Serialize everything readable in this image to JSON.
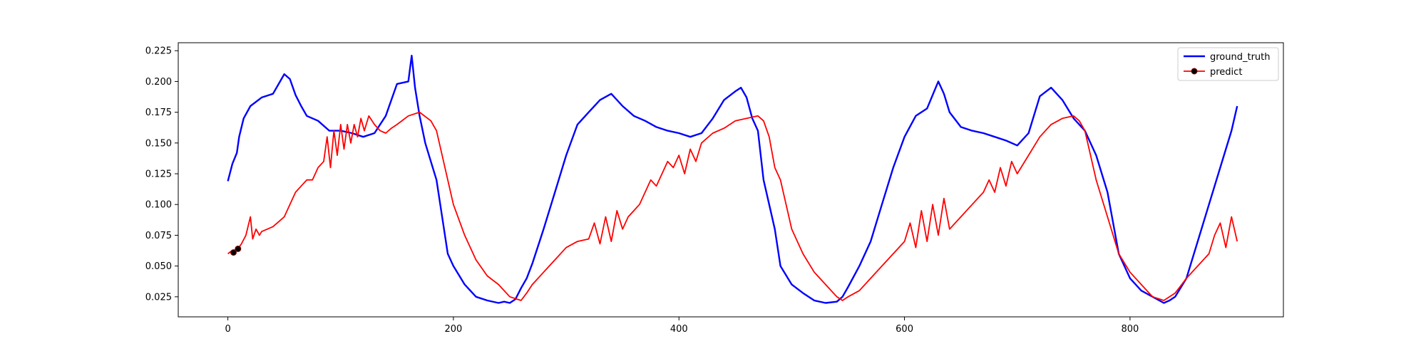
{
  "chart_data": {
    "type": "line",
    "title": "",
    "xlabel": "",
    "ylabel": "",
    "xlim": [
      -44,
      936
    ],
    "ylim": [
      0.0087,
      0.2315
    ],
    "x_ticks": [
      0,
      200,
      400,
      600,
      800
    ],
    "y_ticks": [
      0.025,
      0.05,
      0.075,
      0.1,
      0.125,
      0.15,
      0.175,
      0.2,
      0.225
    ],
    "y_tick_labels": [
      "0.025",
      "0.050",
      "0.075",
      "0.100",
      "0.125",
      "0.150",
      "0.175",
      "0.200",
      "0.225"
    ],
    "legend": {
      "position": "upper right",
      "entries": [
        "ground_truth",
        "predict"
      ]
    },
    "grid": false,
    "series": [
      {
        "name": "ground_truth",
        "color": "#0000ff",
        "x": [
          0,
          4,
          8,
          10,
          14,
          20,
          30,
          40,
          50,
          55,
          60,
          65,
          70,
          80,
          90,
          100,
          110,
          120,
          130,
          140,
          150,
          160,
          163,
          166,
          170,
          175,
          180,
          185,
          190,
          195,
          200,
          210,
          220,
          230,
          240,
          245,
          250,
          255,
          260,
          265,
          270,
          280,
          290,
          300,
          310,
          320,
          330,
          340,
          350,
          360,
          370,
          380,
          390,
          400,
          410,
          420,
          430,
          440,
          450,
          455,
          460,
          465,
          470,
          475,
          480,
          485,
          490,
          500,
          510,
          520,
          530,
          540,
          545,
          550,
          560,
          570,
          580,
          590,
          600,
          610,
          620,
          630,
          635,
          640,
          650,
          660,
          670,
          680,
          690,
          700,
          710,
          720,
          730,
          740,
          750,
          760,
          770,
          780,
          790,
          800,
          810,
          820,
          830,
          835,
          840,
          850,
          860,
          870,
          880,
          890,
          895
        ],
        "y": [
          0.119,
          0.133,
          0.142,
          0.155,
          0.17,
          0.18,
          0.187,
          0.19,
          0.206,
          0.202,
          0.189,
          0.18,
          0.172,
          0.168,
          0.16,
          0.16,
          0.158,
          0.155,
          0.158,
          0.172,
          0.198,
          0.2,
          0.221,
          0.195,
          0.172,
          0.15,
          0.135,
          0.12,
          0.09,
          0.06,
          0.05,
          0.035,
          0.025,
          0.022,
          0.02,
          0.021,
          0.02,
          0.023,
          0.032,
          0.04,
          0.052,
          0.08,
          0.11,
          0.14,
          0.165,
          0.175,
          0.185,
          0.19,
          0.18,
          0.172,
          0.168,
          0.163,
          0.16,
          0.158,
          0.155,
          0.158,
          0.17,
          0.185,
          0.192,
          0.195,
          0.187,
          0.17,
          0.16,
          0.12,
          0.1,
          0.08,
          0.05,
          0.035,
          0.028,
          0.022,
          0.02,
          0.021,
          0.025,
          0.033,
          0.05,
          0.07,
          0.1,
          0.13,
          0.155,
          0.172,
          0.178,
          0.2,
          0.19,
          0.175,
          0.163,
          0.16,
          0.158,
          0.155,
          0.152,
          0.148,
          0.158,
          0.188,
          0.195,
          0.185,
          0.17,
          0.16,
          0.14,
          0.11,
          0.06,
          0.04,
          0.03,
          0.025,
          0.02,
          0.022,
          0.025,
          0.04,
          0.07,
          0.1,
          0.13,
          0.16,
          0.18
        ]
      },
      {
        "name": "predict",
        "color": "#ff0000",
        "x": [
          0,
          3,
          6,
          9,
          12,
          16,
          20,
          22,
          25,
          28,
          30,
          35,
          40,
          45,
          50,
          55,
          60,
          65,
          70,
          75,
          80,
          85,
          88,
          91,
          94,
          97,
          100,
          103,
          106,
          109,
          112,
          115,
          118,
          121,
          125,
          130,
          135,
          140,
          145,
          150,
          160,
          170,
          180,
          185,
          190,
          195,
          200,
          210,
          220,
          230,
          240,
          250,
          260,
          265,
          270,
          280,
          290,
          300,
          310,
          320,
          325,
          330,
          335,
          340,
          345,
          350,
          355,
          360,
          365,
          370,
          375,
          380,
          385,
          390,
          395,
          400,
          405,
          410,
          415,
          420,
          430,
          440,
          450,
          460,
          470,
          475,
          480,
          485,
          490,
          495,
          500,
          510,
          520,
          530,
          540,
          545,
          550,
          560,
          570,
          580,
          590,
          600,
          605,
          610,
          615,
          620,
          625,
          630,
          635,
          640,
          650,
          660,
          670,
          675,
          680,
          685,
          690,
          695,
          700,
          710,
          720,
          730,
          740,
          750,
          755,
          760,
          765,
          770,
          780,
          790,
          800,
          810,
          820,
          830,
          840,
          850,
          860,
          870,
          875,
          880,
          885,
          890,
          895
        ],
        "y": [
          0.06,
          0.062,
          0.063,
          0.064,
          0.068,
          0.075,
          0.09,
          0.072,
          0.08,
          0.075,
          0.078,
          0.08,
          0.082,
          0.086,
          0.09,
          0.1,
          0.11,
          0.115,
          0.12,
          0.12,
          0.13,
          0.135,
          0.155,
          0.13,
          0.16,
          0.14,
          0.165,
          0.145,
          0.165,
          0.15,
          0.165,
          0.155,
          0.17,
          0.16,
          0.172,
          0.165,
          0.16,
          0.158,
          0.162,
          0.165,
          0.172,
          0.175,
          0.168,
          0.16,
          0.14,
          0.12,
          0.1,
          0.075,
          0.055,
          0.042,
          0.035,
          0.025,
          0.022,
          0.028,
          0.035,
          0.045,
          0.055,
          0.065,
          0.07,
          0.072,
          0.085,
          0.068,
          0.09,
          0.07,
          0.095,
          0.08,
          0.09,
          0.095,
          0.1,
          0.11,
          0.12,
          0.115,
          0.125,
          0.135,
          0.13,
          0.14,
          0.125,
          0.145,
          0.135,
          0.15,
          0.158,
          0.162,
          0.168,
          0.17,
          0.172,
          0.168,
          0.155,
          0.13,
          0.12,
          0.1,
          0.08,
          0.06,
          0.045,
          0.035,
          0.025,
          0.022,
          0.025,
          0.03,
          0.04,
          0.05,
          0.06,
          0.07,
          0.085,
          0.065,
          0.095,
          0.07,
          0.1,
          0.075,
          0.105,
          0.08,
          0.09,
          0.1,
          0.11,
          0.12,
          0.11,
          0.13,
          0.115,
          0.135,
          0.125,
          0.14,
          0.155,
          0.165,
          0.17,
          0.172,
          0.168,
          0.16,
          0.14,
          0.12,
          0.09,
          0.06,
          0.045,
          0.035,
          0.025,
          0.022,
          0.028,
          0.04,
          0.05,
          0.06,
          0.075,
          0.085,
          0.065,
          0.09,
          0.07
        ]
      }
    ],
    "predict_markers": {
      "x": [
        5,
        9
      ],
      "y": [
        0.061,
        0.064
      ]
    }
  }
}
